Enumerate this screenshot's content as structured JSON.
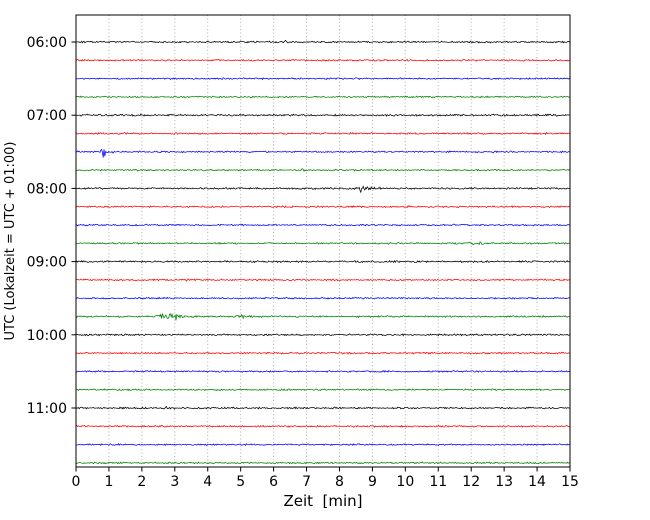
{
  "chart_data": {
    "type": "line",
    "variant": "helicorder-drum-plot",
    "title": "",
    "xlabel": "Zeit  [min]",
    "ylabel": "UTC (Lokalzeit = UTC + 01:00)",
    "xlim": [
      0,
      15
    ],
    "minutes_per_row": 15,
    "x_ticks": [
      0,
      1,
      2,
      3,
      4,
      5,
      6,
      7,
      8,
      9,
      10,
      11,
      12,
      13,
      14,
      15
    ],
    "y_ticks": [
      "06:00",
      "07:00",
      "08:00",
      "09:00",
      "10:00",
      "11:00"
    ],
    "grid": {
      "vertical_dotted": true,
      "color": "#b0b0b0"
    },
    "background": "#ffffff",
    "color_cycle": [
      "#000000",
      "#ff0000",
      "#0000ff",
      "#008000"
    ],
    "rows": [
      {
        "start": "06:00",
        "color": "#000000",
        "noise_amp": 0.8,
        "events": [
          {
            "x": 6.35,
            "sigma": 0.04,
            "amp": 1.8
          }
        ]
      },
      {
        "start": "06:15",
        "color": "#ff0000",
        "noise_amp": 0.8,
        "events": []
      },
      {
        "start": "06:30",
        "color": "#0000ff",
        "noise_amp": 0.75,
        "events": []
      },
      {
        "start": "06:45",
        "color": "#008000",
        "noise_amp": 0.75,
        "events": []
      },
      {
        "start": "07:00",
        "color": "#000000",
        "noise_amp": 0.9,
        "events": [
          {
            "x": 1.5,
            "sigma": 0.8,
            "amp": 0.5
          }
        ]
      },
      {
        "start": "07:15",
        "color": "#ff0000",
        "noise_amp": 0.8,
        "events": [
          {
            "x": 1.5,
            "sigma": 0.05,
            "amp": 1.5
          }
        ]
      },
      {
        "start": "07:30",
        "color": "#0000ff",
        "noise_amp": 0.75,
        "events": [
          {
            "x": 0.85,
            "sigma": 0.05,
            "amp": 6.0
          },
          {
            "x": 0.95,
            "sigma": 0.2,
            "amp": 1.2
          }
        ]
      },
      {
        "start": "07:45",
        "color": "#008000",
        "noise_amp": 0.75,
        "events": [
          {
            "x": 6.9,
            "sigma": 0.06,
            "amp": 1.2
          }
        ]
      },
      {
        "start": "08:00",
        "color": "#000000",
        "noise_amp": 0.85,
        "events": [
          {
            "x": 8.68,
            "sigma": 0.05,
            "amp": 8.0
          },
          {
            "x": 8.8,
            "sigma": 0.25,
            "amp": 1.8
          }
        ]
      },
      {
        "start": "08:15",
        "color": "#ff0000",
        "noise_amp": 0.8,
        "events": []
      },
      {
        "start": "08:30",
        "color": "#0000ff",
        "noise_amp": 0.75,
        "events": []
      },
      {
        "start": "08:45",
        "color": "#008000",
        "noise_amp": 0.75,
        "events": [
          {
            "x": 12.0,
            "sigma": 0.5,
            "amp": 1.0
          }
        ]
      },
      {
        "start": "09:00",
        "color": "#000000",
        "noise_amp": 0.85,
        "events": []
      },
      {
        "start": "09:15",
        "color": "#ff0000",
        "noise_amp": 0.8,
        "events": [
          {
            "x": 3.35,
            "sigma": 0.05,
            "amp": 1.4
          }
        ]
      },
      {
        "start": "09:30",
        "color": "#0000ff",
        "noise_amp": 0.75,
        "events": []
      },
      {
        "start": "09:45",
        "color": "#008000",
        "noise_amp": 0.8,
        "events": [
          {
            "x": 2.75,
            "sigma": 0.2,
            "amp": 3.2
          },
          {
            "x": 3.1,
            "sigma": 0.12,
            "amp": 2.6
          },
          {
            "x": 5.0,
            "sigma": 0.12,
            "amp": 1.5
          }
        ]
      },
      {
        "start": "10:00",
        "color": "#000000",
        "noise_amp": 0.85,
        "events": [
          {
            "x": 0.35,
            "sigma": 0.05,
            "amp": 1.4
          }
        ]
      },
      {
        "start": "10:15",
        "color": "#ff0000",
        "noise_amp": 0.8,
        "events": []
      },
      {
        "start": "10:30",
        "color": "#0000ff",
        "noise_amp": 0.75,
        "events": []
      },
      {
        "start": "10:45",
        "color": "#008000",
        "noise_amp": 0.75,
        "events": []
      },
      {
        "start": "11:00",
        "color": "#000000",
        "noise_amp": 0.85,
        "events": [
          {
            "x": 2.7,
            "sigma": 0.15,
            "amp": 1.8
          },
          {
            "x": 2.95,
            "sigma": 0.06,
            "amp": 1.2
          }
        ]
      },
      {
        "start": "11:15",
        "color": "#ff0000",
        "noise_amp": 0.8,
        "events": []
      },
      {
        "start": "11:30",
        "color": "#0000ff",
        "noise_amp": 0.75,
        "events": [
          {
            "x": 8.9,
            "sigma": 0.05,
            "amp": 1.0
          }
        ]
      },
      {
        "start": "11:45",
        "color": "#008000",
        "noise_amp": 0.75,
        "events": []
      }
    ]
  }
}
